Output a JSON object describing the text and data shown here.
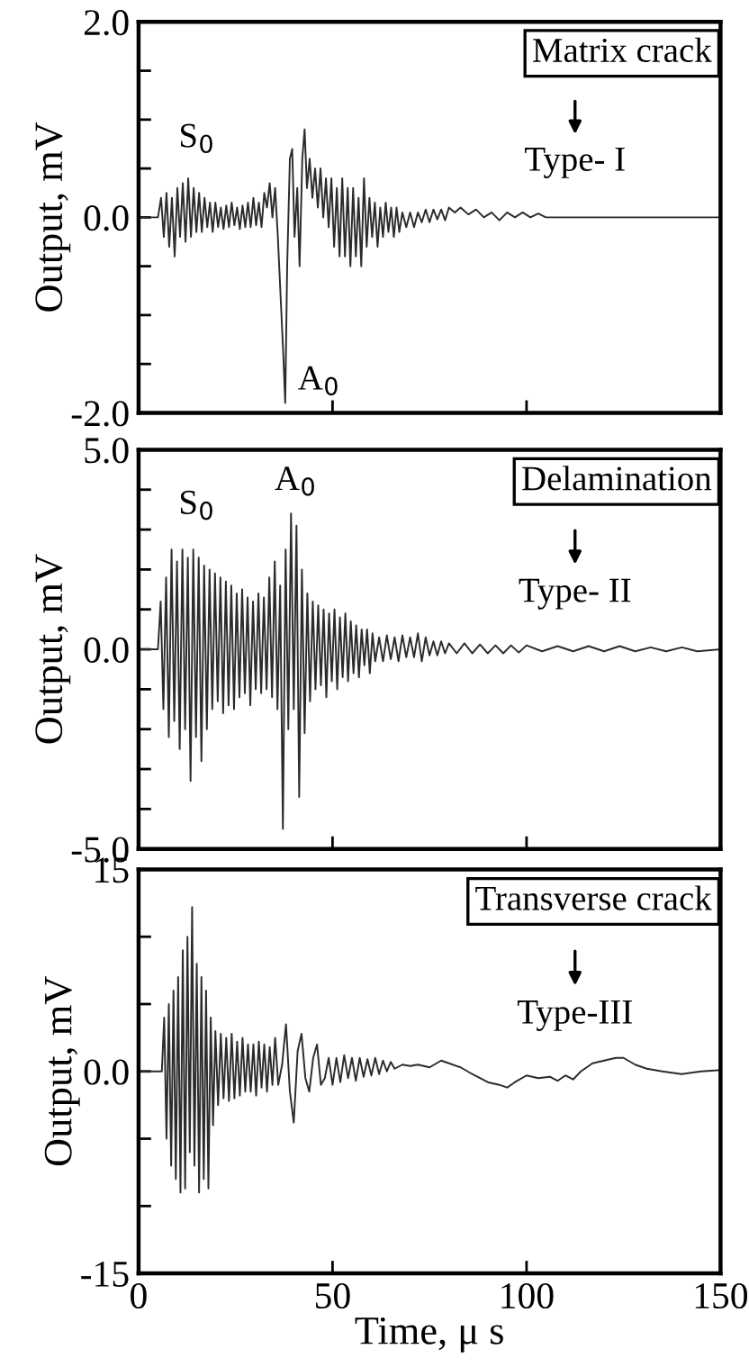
{
  "chart_data": [
    {
      "type": "line",
      "ylabel": "Output, mV",
      "xlim": [
        0,
        150
      ],
      "xticks": [
        {
          "value": 0,
          "label": null
        },
        {
          "value": 50,
          "label": null
        },
        {
          "value": 100,
          "label": null
        },
        {
          "value": 150,
          "label": null
        }
      ],
      "ylim": [
        -2,
        2
      ],
      "yticks": [
        {
          "value": -2,
          "label": "-2.0"
        },
        {
          "value": -1.5,
          "label": null
        },
        {
          "value": -1,
          "label": null
        },
        {
          "value": -0.5,
          "label": null
        },
        {
          "value": 0,
          "label": "0.0"
        },
        {
          "value": 0.5,
          "label": null
        },
        {
          "value": 1,
          "label": null
        },
        {
          "value": 1.5,
          "label": null
        },
        {
          "value": 2,
          "label": "2.0"
        }
      ],
      "tick_labels": "y",
      "grid": false,
      "legend": false,
      "annotations": [
        "Matrix crack",
        "Type- I",
        "S$_{0}$",
        "A$_{0}$"
      ],
      "series": [
        {
          "color": "#2b2b2b",
          "x": [
            0,
            5,
            5.8,
            6.5,
            7.2,
            7.9,
            8.6,
            9.3,
            10,
            10.7,
            11.4,
            12.1,
            12.8,
            13.5,
            14.2,
            14.9,
            15.6,
            16.3,
            17,
            17.7,
            18.4,
            19.1,
            19.8,
            20.5,
            21.2,
            21.9,
            22.6,
            23.3,
            24,
            24.7,
            25.4,
            26.1,
            26.8,
            27.5,
            28.2,
            28.9,
            29.6,
            30.3,
            31,
            31.7,
            32.4,
            33.1,
            33.8,
            34.5,
            35.2,
            35.9,
            36.6,
            37.3,
            37.8,
            38.3,
            39,
            39.6,
            40.2,
            40.9,
            41.5,
            42.2,
            42.8,
            43.4,
            44.1,
            44.8,
            45.5,
            46.2,
            46.9,
            47.6,
            48.3,
            49,
            49.7,
            50.4,
            51.1,
            51.8,
            52.5,
            53.2,
            53.9,
            54.6,
            55.3,
            56,
            56.7,
            57.4,
            58.1,
            58.8,
            59.5,
            60.2,
            60.9,
            61.6,
            62.3,
            63,
            63.7,
            64.4,
            65.1,
            65.8,
            66.5,
            67.2,
            68,
            69,
            70,
            71,
            72,
            73,
            74,
            75,
            76,
            77,
            78,
            79,
            80,
            81.5,
            83,
            85,
            87,
            89,
            91,
            93,
            95,
            97,
            99,
            101,
            103,
            105,
            110,
            150
          ],
          "values": [
            0,
            0,
            0.2,
            -0.2,
            0.25,
            -0.3,
            0.2,
            -0.4,
            0.3,
            -0.2,
            0.35,
            -0.25,
            0.4,
            -0.2,
            0.3,
            -0.15,
            0.25,
            -0.15,
            0.2,
            -0.1,
            0.15,
            -0.15,
            0.15,
            -0.1,
            0.1,
            -0.12,
            0.12,
            -0.1,
            0.15,
            -0.08,
            0.1,
            -0.12,
            0.12,
            -0.1,
            0.15,
            -0.1,
            0.2,
            -0.08,
            0.15,
            -0.1,
            0.25,
            0.1,
            0.35,
            0.0,
            0.3,
            -0.2,
            -0.8,
            -1.4,
            -1.9,
            -0.5,
            0.6,
            0.7,
            -0.2,
            0.3,
            -0.5,
            0.6,
            0.9,
            0.3,
            0.6,
            0.2,
            0.5,
            0.1,
            0.5,
            0.0,
            0.4,
            -0.1,
            0.4,
            -0.3,
            0.3,
            -0.4,
            0.4,
            -0.4,
            0.3,
            -0.5,
            0.3,
            -0.4,
            0.2,
            -0.5,
            0.4,
            -0.3,
            0.2,
            -0.2,
            0.15,
            -0.3,
            0.1,
            -0.2,
            0.15,
            -0.15,
            0.1,
            -0.2,
            0.1,
            -0.15,
            0.05,
            -0.1,
            0.05,
            -0.1,
            0.05,
            -0.05,
            0.08,
            -0.05,
            0.08,
            -0.02,
            0.08,
            -0.03,
            0.1,
            0.05,
            0.1,
            0.03,
            0.08,
            0.0,
            0.05,
            -0.03,
            0.05,
            0.0,
            0.05,
            0.0,
            0.04,
            0.0,
            0,
            0
          ]
        }
      ]
    },
    {
      "type": "line",
      "ylabel": "Output, mV",
      "xlim": [
        0,
        150
      ],
      "xticks": [
        {
          "value": 0,
          "label": null
        },
        {
          "value": 50,
          "label": null
        },
        {
          "value": 100,
          "label": null
        },
        {
          "value": 150,
          "label": null
        }
      ],
      "ylim": [
        -5,
        5
      ],
      "yticks": [
        {
          "value": -5,
          "label": "-5.0"
        },
        {
          "value": -4,
          "label": null
        },
        {
          "value": -3,
          "label": null
        },
        {
          "value": -2,
          "label": null
        },
        {
          "value": -1,
          "label": null
        },
        {
          "value": 0,
          "label": "0.0"
        },
        {
          "value": 1,
          "label": null
        },
        {
          "value": 2,
          "label": null
        },
        {
          "value": 3,
          "label": null
        },
        {
          "value": 4,
          "label": null
        },
        {
          "value": 5,
          "label": "5.0"
        }
      ],
      "tick_labels": "y",
      "grid": false,
      "legend": false,
      "annotations": [
        "Delamination",
        "Type- II",
        "S$_{0}$",
        "A$_{0}$"
      ],
      "series": [
        {
          "color": "#2b2b2b",
          "x": [
            0,
            5,
            5.7,
            6.4,
            7.1,
            7.8,
            8.5,
            9.2,
            9.9,
            10.6,
            11.3,
            12,
            12.7,
            13.4,
            14.1,
            14.8,
            15.5,
            16.2,
            16.9,
            17.6,
            18.3,
            19,
            19.7,
            20.4,
            21.1,
            21.8,
            22.5,
            23.2,
            23.9,
            24.6,
            25.3,
            26,
            26.7,
            27.4,
            28.1,
            28.8,
            29.5,
            30.2,
            30.9,
            31.6,
            32.3,
            33,
            33.7,
            34.4,
            35.1,
            35.8,
            36.5,
            37.2,
            37.9,
            38.6,
            39.3,
            40,
            40.7,
            41.4,
            42.1,
            42.8,
            43.5,
            44.2,
            44.9,
            45.6,
            46.3,
            47,
            47.7,
            48.4,
            49.1,
            49.8,
            50.5,
            51.2,
            51.9,
            52.6,
            53.3,
            54,
            54.7,
            55.4,
            56.1,
            56.8,
            57.5,
            58.2,
            58.9,
            59.6,
            60.3,
            61,
            62,
            63,
            64,
            65,
            66,
            67,
            68,
            69,
            70,
            71,
            72,
            73,
            74,
            75,
            76,
            77,
            78,
            79,
            80,
            82,
            84,
            86,
            88,
            90,
            92,
            94,
            96,
            98,
            100,
            104,
            108,
            112,
            116,
            120,
            124,
            128,
            132,
            136,
            140,
            144,
            150
          ],
          "values": [
            0,
            0,
            1.2,
            -1.5,
            1.8,
            -2.2,
            2.5,
            -1.8,
            2.2,
            -2.5,
            2.5,
            -2.0,
            2.3,
            -3.3,
            2.5,
            -2.2,
            2.3,
            -2.8,
            2.1,
            -2.0,
            2.0,
            -1.5,
            1.9,
            -1.3,
            1.8,
            -1.6,
            1.7,
            -1.4,
            1.6,
            -1.5,
            1.4,
            -1.2,
            1.5,
            -1.1,
            1.3,
            -1.4,
            1.2,
            -1.0,
            1.4,
            -1.1,
            1.3,
            -1.0,
            1.8,
            -1.2,
            2.2,
            -1.5,
            1.6,
            -4.5,
            2.5,
            -2.0,
            3.4,
            -1.5,
            3.1,
            -3.7,
            2.0,
            -2.1,
            1.4,
            -1.3,
            1.2,
            -1.0,
            1.1,
            -0.9,
            1.0,
            -1.2,
            0.9,
            -0.8,
            1.0,
            -1.0,
            0.8,
            -0.7,
            0.9,
            -0.8,
            0.7,
            -0.6,
            0.6,
            -0.7,
            0.5,
            -0.4,
            0.5,
            -0.6,
            0.4,
            -0.3,
            0.3,
            -0.3,
            0.35,
            -0.25,
            0.3,
            -0.3,
            0.35,
            -0.2,
            0.3,
            -0.2,
            0.4,
            -0.3,
            0.3,
            -0.15,
            0.2,
            -0.15,
            0.2,
            -0.1,
            0.15,
            -0.1,
            0.15,
            -0.1,
            0.12,
            -0.1,
            0.1,
            -0.1,
            0.1,
            -0.08,
            0.1,
            -0.05,
            0.08,
            -0.05,
            0.08,
            -0.05,
            0.08,
            -0.05,
            0.05,
            -0.05,
            0.05,
            -0.05,
            0
          ]
        }
      ]
    },
    {
      "type": "line",
      "xlabel": "Time, μ s",
      "ylabel": "Output, mV",
      "xlim": [
        0,
        150
      ],
      "xticks": [
        0,
        50,
        100,
        150
      ],
      "ylim": [
        -15,
        15
      ],
      "yticks": [
        {
          "value": -15,
          "label": "-15"
        },
        {
          "value": -10,
          "label": null
        },
        {
          "value": -5,
          "label": null
        },
        {
          "value": 0,
          "label": "0.0"
        },
        {
          "value": 5,
          "label": null
        },
        {
          "value": 10,
          "label": null
        },
        {
          "value": 15,
          "label": "15"
        }
      ],
      "grid": false,
      "legend": false,
      "annotations": [
        "Transverse crack",
        "Type-III"
      ],
      "series": [
        {
          "color": "#2b2b2b",
          "x": [
            0,
            6,
            6.6,
            7.2,
            7.8,
            8.4,
            9,
            9.6,
            10.2,
            10.8,
            11.4,
            12,
            12.6,
            13.2,
            13.8,
            14.4,
            15,
            15.6,
            16.2,
            16.8,
            17.4,
            18,
            18.6,
            19.2,
            19.8,
            20.5,
            21.2,
            21.9,
            22.6,
            23.3,
            24,
            24.7,
            25.4,
            26.1,
            26.8,
            27.5,
            28.2,
            28.9,
            29.6,
            30.3,
            31,
            31.7,
            32.4,
            33.1,
            33.8,
            34.5,
            35.2,
            36,
            37,
            38,
            39,
            40,
            41,
            42,
            43,
            44,
            45,
            46,
            47,
            48,
            49,
            50,
            51,
            52,
            53,
            54,
            55,
            56,
            57,
            58,
            59,
            60,
            61,
            62,
            63,
            64,
            65,
            66,
            68,
            70,
            72,
            75,
            78,
            80,
            83,
            86,
            90,
            93,
            95,
            97,
            100,
            103,
            106,
            108,
            110,
            112,
            114,
            117,
            120,
            123,
            125,
            128,
            131,
            135,
            140,
            145,
            150
          ],
          "values": [
            0,
            0,
            4,
            -5,
            5,
            -7,
            6,
            -8,
            7,
            -9,
            9,
            -8.7,
            10,
            -6,
            12.2,
            -7,
            8,
            -9,
            7,
            -8,
            6,
            -8.7,
            4,
            -4,
            3,
            -2.5,
            2.8,
            -2,
            2.5,
            -2.2,
            2.8,
            -2,
            2.2,
            -1.8,
            2.5,
            -1.5,
            2,
            -1.5,
            2,
            -1.8,
            2.2,
            -1.2,
            2,
            -1.5,
            1.8,
            -1.0,
            2.5,
            -1.0,
            0.5,
            3.5,
            -1.5,
            -3.8,
            1.5,
            2.8,
            -0.5,
            -1.5,
            1.0,
            2.0,
            -1.0,
            -0.5,
            1.0,
            -1.0,
            1.0,
            -0.8,
            1.2,
            -0.5,
            1.0,
            -0.7,
            1.0,
            -0.4,
            0.9,
            -0.3,
            1.0,
            -0.2,
            0.8,
            0.0,
            0.7,
            0.2,
            0.5,
            0.4,
            0.5,
            0.3,
            0.8,
            0.6,
            0.3,
            -0.2,
            -0.8,
            -1.0,
            -1.2,
            -0.8,
            -0.3,
            -0.5,
            -0.4,
            -0.7,
            -0.3,
            -0.6,
            0.0,
            0.6,
            0.8,
            1.0,
            1.0,
            0.5,
            0.2,
            0.0,
            -0.2,
            0.0,
            0.1
          ]
        }
      ]
    }
  ]
}
